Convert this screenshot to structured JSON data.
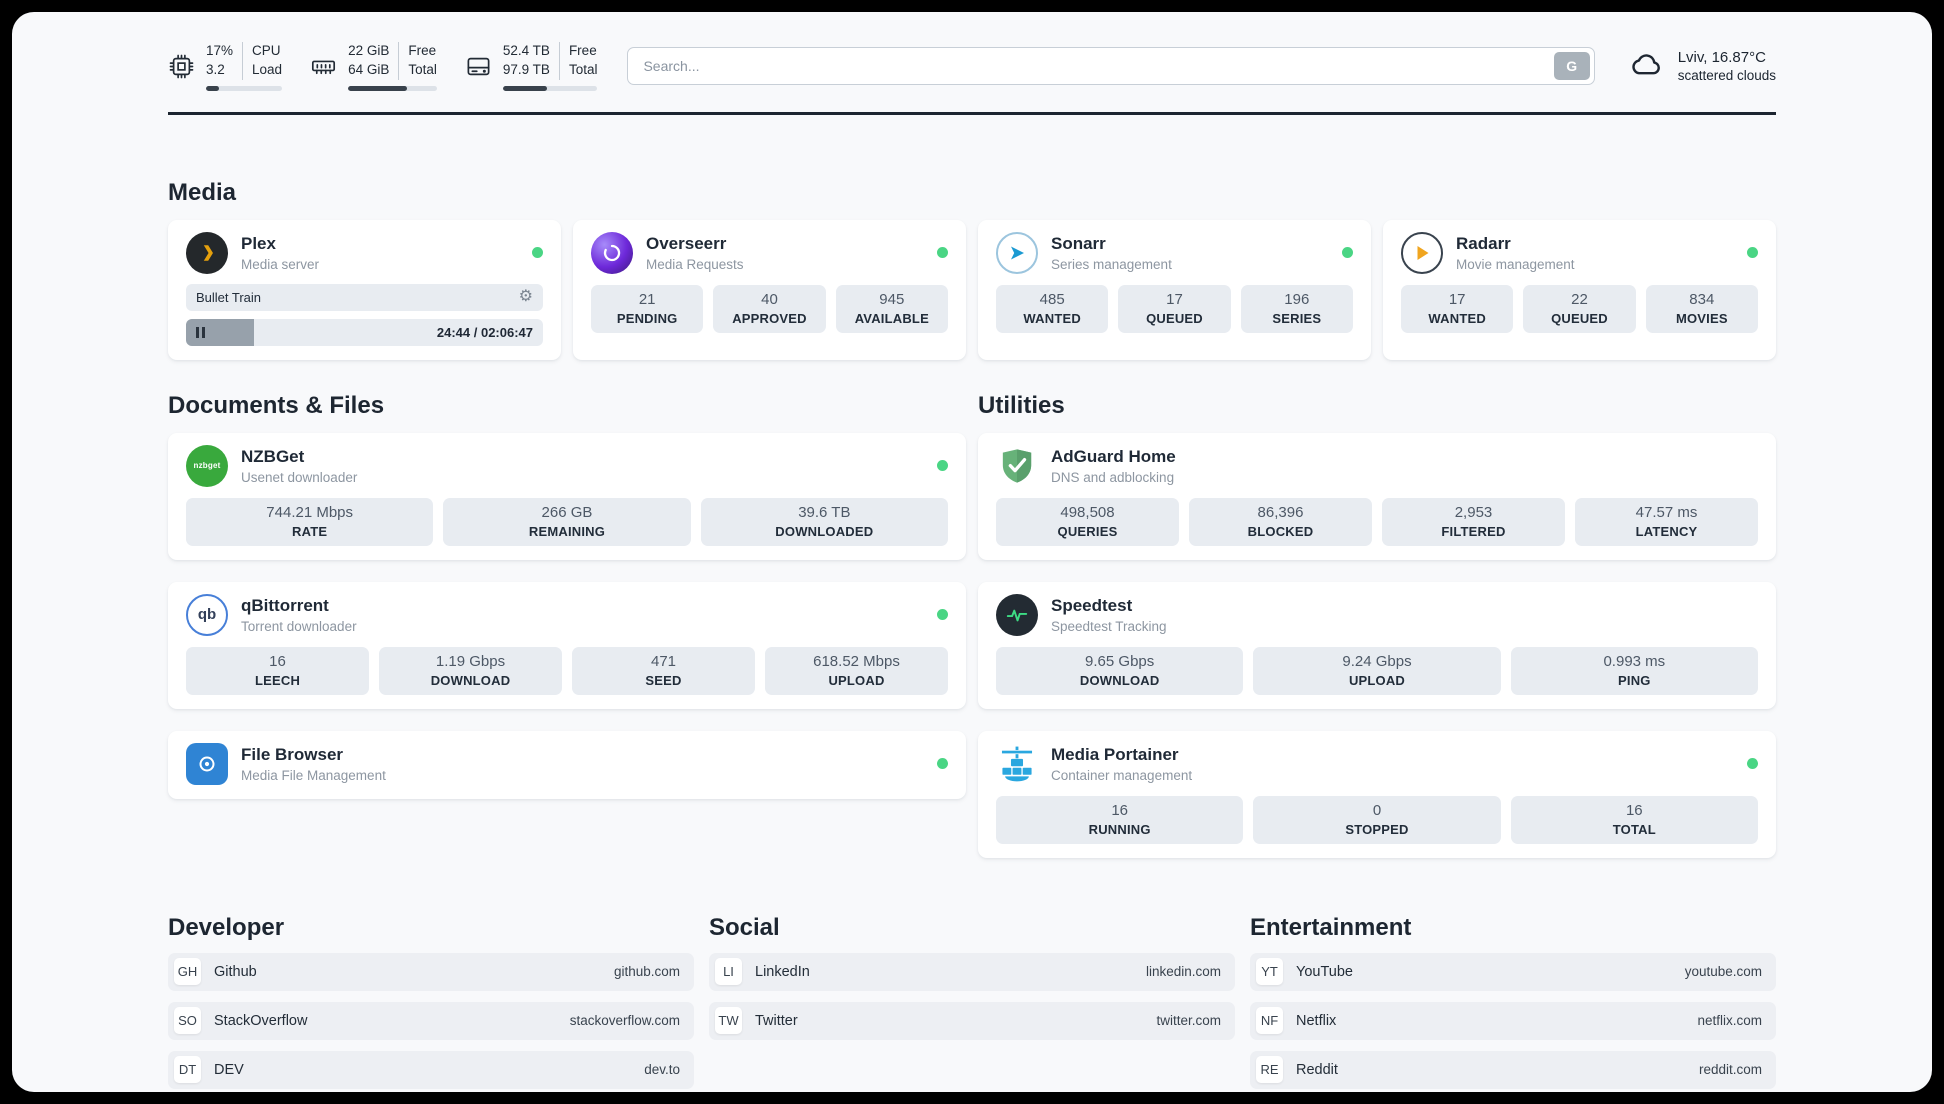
{
  "topbar": {
    "cpu": {
      "value_top": "17%",
      "value_bottom": "3.2",
      "label_top": "CPU",
      "label_bottom": "Load",
      "progress_pct": 17
    },
    "ram": {
      "value_top": "22 GiB",
      "value_bottom": "64 GiB",
      "label_top": "Free",
      "label_bottom": "Total",
      "progress_pct": 66
    },
    "disk": {
      "value_top": "52.4 TB",
      "value_bottom": "97.9 TB",
      "label_top": "Free",
      "label_bottom": "Total",
      "progress_pct": 47
    },
    "search": {
      "placeholder": "Search...",
      "button_label": "G"
    },
    "weather": {
      "location": "Lviv, 16.87°C",
      "condition": "scattered clouds"
    }
  },
  "sections": {
    "media": "Media",
    "documents": "Documents & Files",
    "utilities": "Utilities",
    "developer": "Developer",
    "social": "Social",
    "entertainment": "Entertainment"
  },
  "apps": {
    "plex": {
      "name": "Plex",
      "subtitle": "Media server",
      "now_playing": "Bullet Train",
      "time": "24:44 / 02:06:47",
      "progress_pct": 19,
      "online": true
    },
    "overseerr": {
      "name": "Overseerr",
      "subtitle": "Media Requests",
      "online": true,
      "stats": [
        {
          "value": "21",
          "label": "PENDING"
        },
        {
          "value": "40",
          "label": "APPROVED"
        },
        {
          "value": "945",
          "label": "AVAILABLE"
        }
      ]
    },
    "sonarr": {
      "name": "Sonarr",
      "subtitle": "Series management",
      "online": true,
      "stats": [
        {
          "value": "485",
          "label": "WANTED"
        },
        {
          "value": "17",
          "label": "QUEUED"
        },
        {
          "value": "196",
          "label": "SERIES"
        }
      ]
    },
    "radarr": {
      "name": "Radarr",
      "subtitle": "Movie management",
      "online": true,
      "stats": [
        {
          "value": "17",
          "label": "WANTED"
        },
        {
          "value": "22",
          "label": "QUEUED"
        },
        {
          "value": "834",
          "label": "MOVIES"
        }
      ]
    },
    "nzbget": {
      "name": "NZBGet",
      "subtitle": "Usenet downloader",
      "icon_text": "nzbget",
      "online": true,
      "stats": [
        {
          "value": "744.21 Mbps",
          "label": "RATE"
        },
        {
          "value": "266 GB",
          "label": "REMAINING"
        },
        {
          "value": "39.6 TB",
          "label": "DOWNLOADED"
        }
      ]
    },
    "qbittorrent": {
      "name": "qBittorrent",
      "subtitle": "Torrent downloader",
      "icon_text": "qb",
      "online": true,
      "stats": [
        {
          "value": "16",
          "label": "LEECH"
        },
        {
          "value": "1.19 Gbps",
          "label": "DOWNLOAD"
        },
        {
          "value": "471",
          "label": "SEED"
        },
        {
          "value": "618.52 Mbps",
          "label": "UPLOAD"
        }
      ]
    },
    "filebrowser": {
      "name": "File Browser",
      "subtitle": "Media File Management",
      "online": true
    },
    "adguard": {
      "name": "AdGuard Home",
      "subtitle": "DNS and adblocking",
      "stats": [
        {
          "value": "498,508",
          "label": "QUERIES"
        },
        {
          "value": "86,396",
          "label": "BLOCKED"
        },
        {
          "value": "2,953",
          "label": "FILTERED"
        },
        {
          "value": "47.57 ms",
          "label": "LATENCY"
        }
      ]
    },
    "speedtest": {
      "name": "Speedtest",
      "subtitle": "Speedtest Tracking",
      "stats": [
        {
          "value": "9.65 Gbps",
          "label": "DOWNLOAD"
        },
        {
          "value": "9.24 Gbps",
          "label": "UPLOAD"
        },
        {
          "value": "0.993 ms",
          "label": "PING"
        }
      ]
    },
    "portainer": {
      "name": "Media Portainer",
      "subtitle": "Container management",
      "online": true,
      "stats": [
        {
          "value": "16",
          "label": "RUNNING"
        },
        {
          "value": "0",
          "label": "STOPPED"
        },
        {
          "value": "16",
          "label": "TOTAL"
        }
      ]
    }
  },
  "links": {
    "developer": [
      {
        "abbr": "GH",
        "name": "Github",
        "url": "github.com"
      },
      {
        "abbr": "SO",
        "name": "StackOverflow",
        "url": "stackoverflow.com"
      },
      {
        "abbr": "DT",
        "name": "DEV",
        "url": "dev.to"
      }
    ],
    "social": [
      {
        "abbr": "LI",
        "name": "LinkedIn",
        "url": "linkedin.com"
      },
      {
        "abbr": "TW",
        "name": "Twitter",
        "url": "twitter.com"
      }
    ],
    "entertainment": [
      {
        "abbr": "YT",
        "name": "YouTube",
        "url": "youtube.com"
      },
      {
        "abbr": "NF",
        "name": "Netflix",
        "url": "netflix.com"
      },
      {
        "abbr": "RE",
        "name": "Reddit",
        "url": "reddit.com"
      }
    ]
  },
  "icons": {
    "gear": "⚙"
  },
  "colors": {
    "status_online": "#4ad584",
    "plex_accent": "#e5a00d",
    "radarr_accent": "#f0a51f",
    "sonarr_accent": "#1b9ad2",
    "nzbget_green": "#39a93d",
    "adguard_green": "#67b279",
    "speedtest_pulse": "#3ddc84",
    "portainer_blue": "#2aa7df",
    "overseerr_purple": "#6d28d9",
    "tile_bg": "#e8ecf1",
    "panel_bg": "#f8f9fb"
  }
}
